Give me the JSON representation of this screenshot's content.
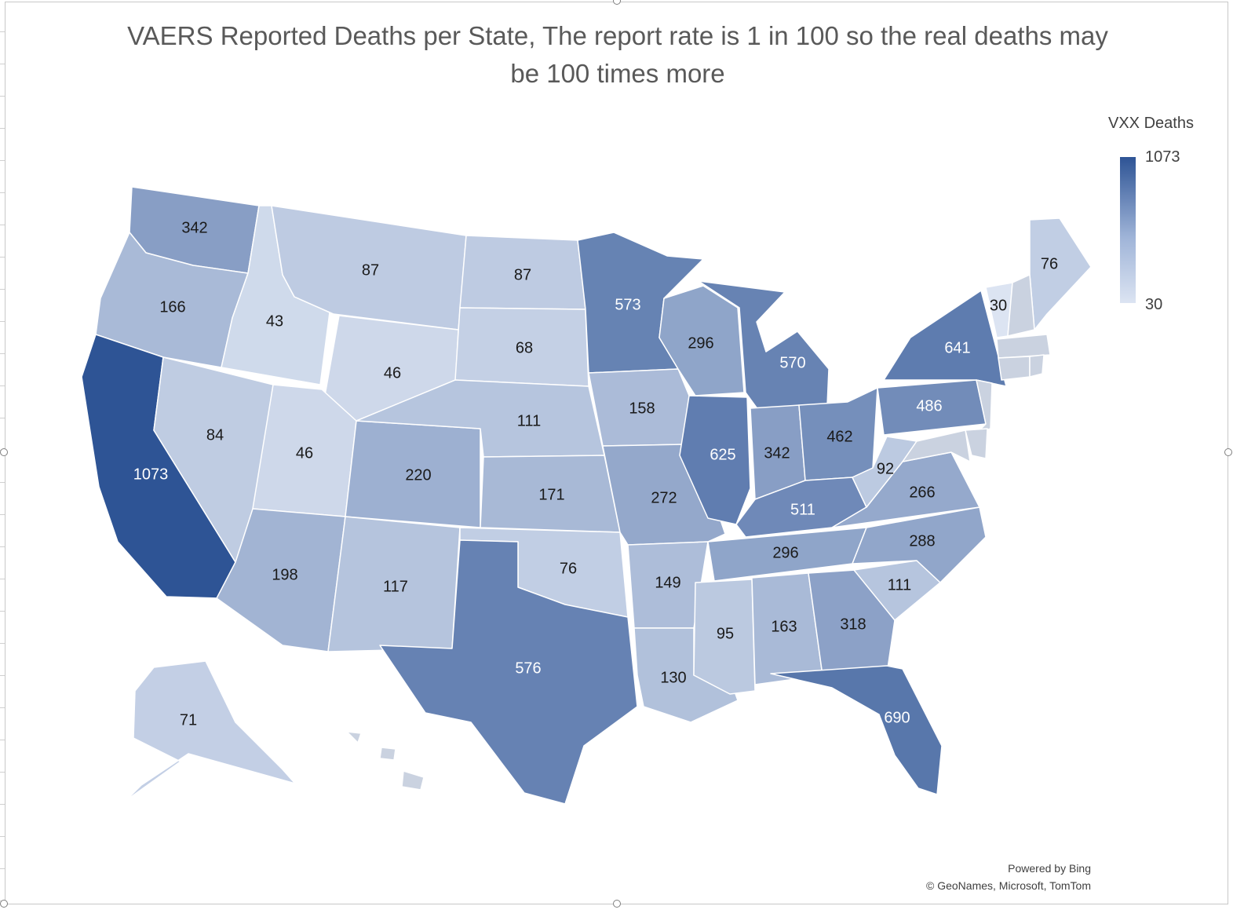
{
  "title": "VAERS Reported Deaths per State, The report rate is 1 in 100 so the real deaths may\nbe 100 times more",
  "legend": {
    "title": "VXX Deaths",
    "max_label": "1073",
    "min_label": "30"
  },
  "credits": {
    "line1": "Powered by Bing",
    "line2": "© GeoNames, Microsoft, TomTom"
  },
  "colors": {
    "min": "#dce4f2",
    "max": "#2e5495",
    "label_dark": "#1a1a1a",
    "label_light": "#ffffff"
  },
  "chart_data": {
    "type": "choropleth",
    "value_range": [
      30,
      1073
    ],
    "states": [
      {
        "state": "WA",
        "value": 342
      },
      {
        "state": "OR",
        "value": 166
      },
      {
        "state": "CA",
        "value": 1073
      },
      {
        "state": "ID",
        "value": 43
      },
      {
        "state": "NV",
        "value": 84
      },
      {
        "state": "MT",
        "value": 87
      },
      {
        "state": "WY",
        "value": 46
      },
      {
        "state": "UT",
        "value": 46
      },
      {
        "state": "AZ",
        "value": 198
      },
      {
        "state": "CO",
        "value": 220
      },
      {
        "state": "NM",
        "value": 117
      },
      {
        "state": "ND",
        "value": 87
      },
      {
        "state": "SD",
        "value": 68
      },
      {
        "state": "NE",
        "value": 111
      },
      {
        "state": "KS",
        "value": 171
      },
      {
        "state": "OK",
        "value": 76
      },
      {
        "state": "TX",
        "value": 576
      },
      {
        "state": "MN",
        "value": 573
      },
      {
        "state": "IA",
        "value": 158
      },
      {
        "state": "MO",
        "value": 272
      },
      {
        "state": "AR",
        "value": 149
      },
      {
        "state": "LA",
        "value": 130
      },
      {
        "state": "WI",
        "value": 296
      },
      {
        "state": "IL",
        "value": 625
      },
      {
        "state": "MI",
        "value": 570
      },
      {
        "state": "IN",
        "value": 342
      },
      {
        "state": "OH",
        "value": 462
      },
      {
        "state": "KY",
        "value": 511
      },
      {
        "state": "TN",
        "value": 296
      },
      {
        "state": "MS",
        "value": 95
      },
      {
        "state": "AL",
        "value": 163
      },
      {
        "state": "GA",
        "value": 318
      },
      {
        "state": "FL",
        "value": 690
      },
      {
        "state": "SC",
        "value": 111
      },
      {
        "state": "NC",
        "value": 288
      },
      {
        "state": "VA",
        "value": 266
      },
      {
        "state": "WV",
        "value": 92
      },
      {
        "state": "PA",
        "value": 486
      },
      {
        "state": "NY",
        "value": 641
      },
      {
        "state": "VT",
        "value": 30
      },
      {
        "state": "ME",
        "value": 76
      },
      {
        "state": "AK",
        "value": 71
      },
      {
        "state": "NH"
      },
      {
        "state": "MA"
      },
      {
        "state": "CT"
      },
      {
        "state": "RI"
      },
      {
        "state": "NJ"
      },
      {
        "state": "DE"
      },
      {
        "state": "MD"
      },
      {
        "state": "HI"
      }
    ]
  }
}
